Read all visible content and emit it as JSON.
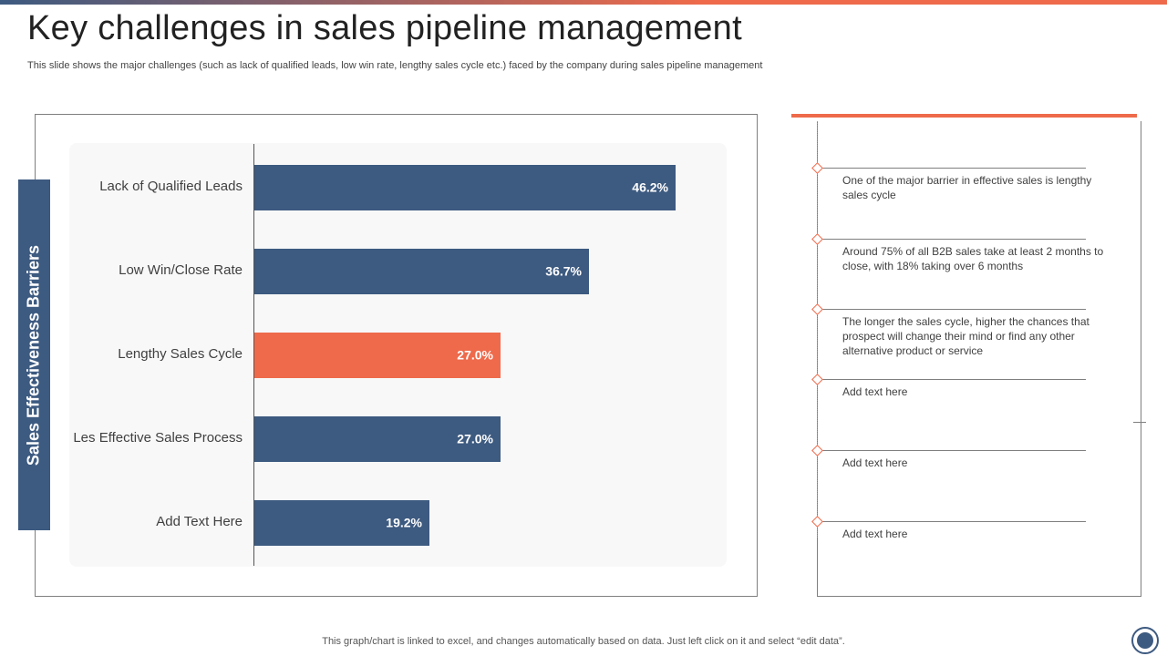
{
  "slide": {
    "title": "Key challenges in sales pipeline management",
    "subtitle": "This slide shows the major challenges (such as lack of qualified leads, low win rate, lengthy sales cycle etc.) faced by the company during sales pipeline management",
    "side_label": "Sales Effectiveness Barriers",
    "footnote": "This graph/chart is linked to excel,  and changes automatically based on data. Just left click on it and select “edit data”."
  },
  "colors": {
    "primary": "#3d5a80",
    "accent": "#ee6a4b",
    "text": "#404040"
  },
  "chart_data": {
    "type": "bar",
    "orientation": "horizontal",
    "title": "",
    "xlabel": "",
    "ylabel": "Sales Effectiveness Barriers",
    "categories": [
      "Lack of Qualified Leads",
      "Low Win/Close Rate",
      "Lengthy Sales Cycle",
      "Les Effective Sales Process",
      "Add Text Here"
    ],
    "values": [
      46.2,
      36.7,
      27.0,
      27.0,
      19.2
    ],
    "value_labels": [
      "46.2%",
      "36.7%",
      "27.0%",
      "27.0%",
      "19.2%"
    ],
    "highlight_index": 2,
    "xlim": [
      0,
      60
    ],
    "grid": false
  },
  "notes": [
    {
      "text": "One of the major barrier in effective  sales is lengthy sales cycle"
    },
    {
      "text": "Around 75% of all B2B sales take at least 2 months to close, with 18% taking over 6 months"
    },
    {
      "text": "The longer the sales cycle, higher the chances that prospect will change their mind or find any other alternative  product or service"
    },
    {
      "text": "Add text here"
    },
    {
      "text": "Add text here"
    },
    {
      "text": "Add text here"
    }
  ]
}
